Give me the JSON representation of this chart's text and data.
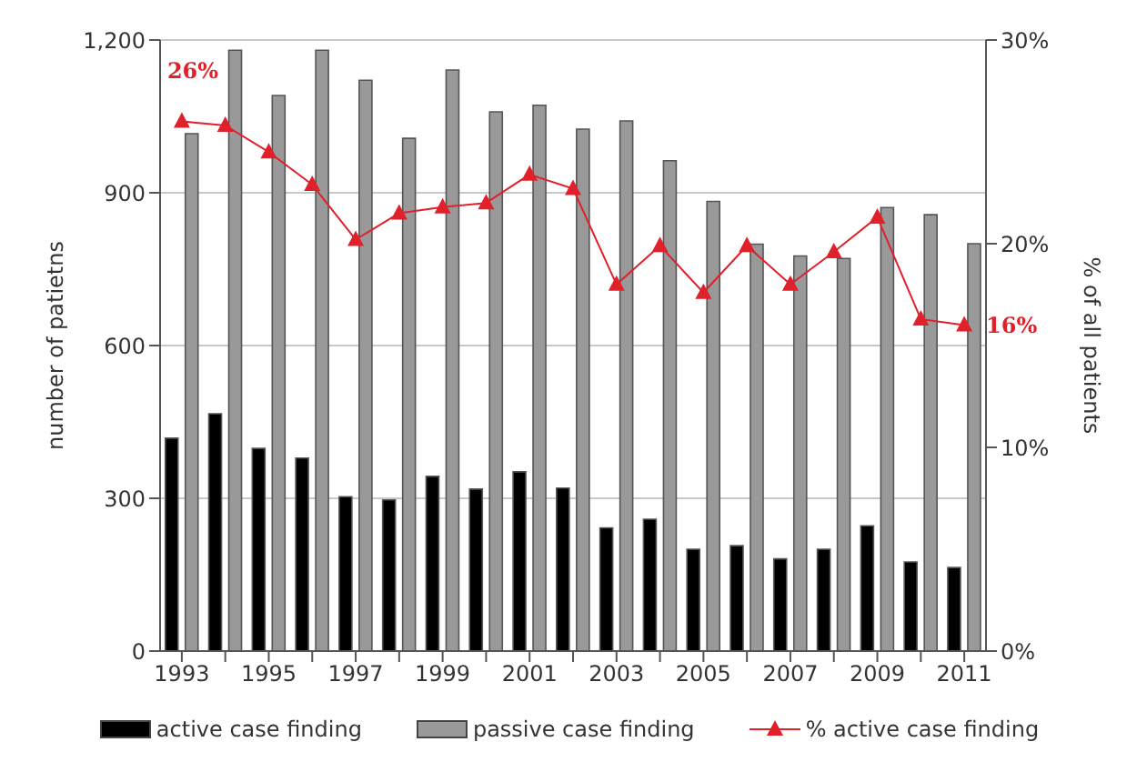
{
  "chart_data": {
    "type": "bar",
    "categories": [
      "1993",
      null,
      "1995",
      null,
      "1997",
      null,
      "1999",
      null,
      "2001",
      null,
      "2003",
      null,
      "2005",
      null,
      "2007",
      null,
      "2009",
      null,
      "2011"
    ],
    "ylabel": "number of patietns",
    "y2label": "% of all patients",
    "ylim": [
      0,
      1200
    ],
    "yticks": [
      0,
      {
        "value": 300,
        "label": "300"
      },
      {
        "value": 600,
        "label": "600"
      },
      {
        "value": 900,
        "label": "900"
      },
      {
        "value": 1200,
        "label": "1,200"
      }
    ],
    "y2lim": [
      0,
      30
    ],
    "y2ticks": [
      {
        "value": 0,
        "label": "0%"
      },
      {
        "value": 10,
        "label": "10%"
      },
      {
        "value": 20,
        "label": "20%"
      },
      {
        "value": 30,
        "label": "30%"
      }
    ],
    "series": [
      {
        "name": "active case finding",
        "color": "#000000",
        "values": [
          418,
          466,
          398,
          379,
          303,
          297,
          343,
          318,
          352,
          320,
          242,
          259,
          200,
          207,
          181,
          200,
          246,
          175,
          164
        ]
      },
      {
        "name": "passive case finding",
        "color": "#999999",
        "values": [
          1016,
          1180,
          1091,
          1180,
          1121,
          1007,
          1141,
          1059,
          1072,
          1025,
          1041,
          963,
          883,
          799,
          776,
          771,
          871,
          857,
          800
        ]
      },
      {
        "name": "% active case finding",
        "type": "line",
        "axis": "y2",
        "color": "#e0202a",
        "marker": "triangle",
        "values": [
          26,
          25.8,
          24.5,
          22.9,
          20.2,
          21.5,
          21.8,
          22.0,
          23.4,
          22.7,
          18.0,
          19.9,
          17.6,
          19.9,
          18.0,
          19.6,
          21.3,
          16.3,
          16
        ],
        "value_labels": [
          "26%",
          null,
          null,
          null,
          null,
          null,
          null,
          null,
          null,
          null,
          null,
          null,
          null,
          null,
          null,
          null,
          null,
          null,
          "16%"
        ]
      }
    ],
    "grid": "y",
    "legend": "bottom"
  }
}
